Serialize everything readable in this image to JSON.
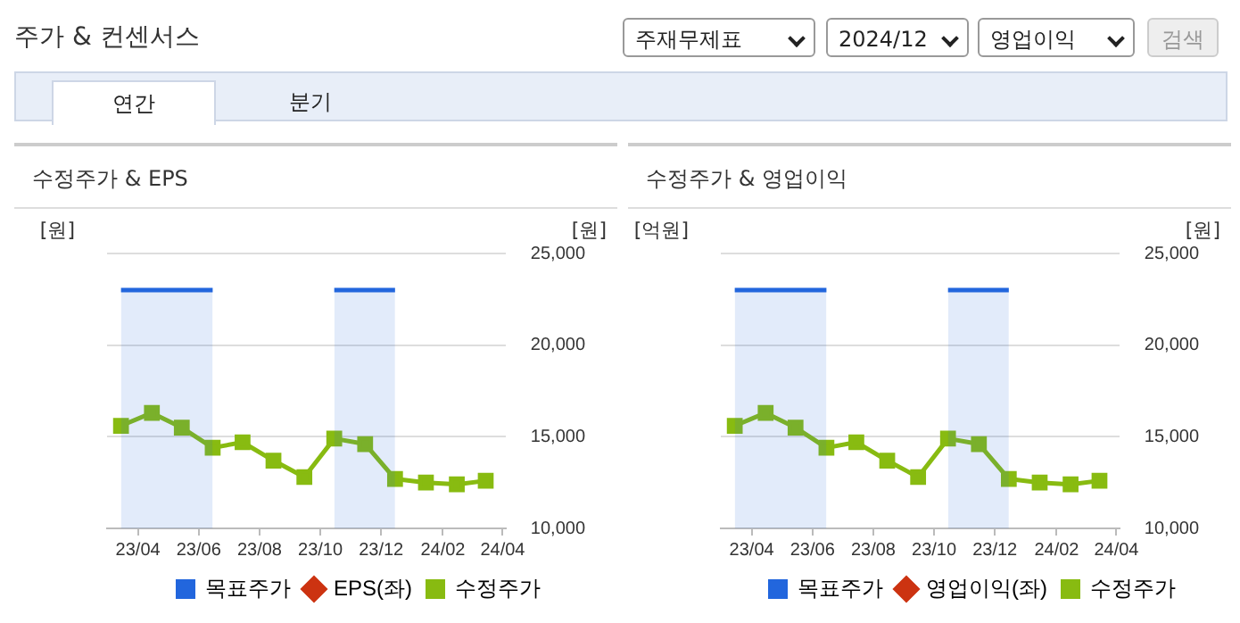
{
  "chart_data": [
    {
      "type": "other",
      "title": "주가 & 컨센서스",
      "annotations": [
        "주재무제표",
        "2024/12",
        "영업이익",
        "검색",
        "연간",
        "분기"
      ]
    },
    {
      "type": "line",
      "title": "수정주가 & EPS",
      "ylabel": "[원]",
      "y2label": "[원]",
      "xlim": [
        "2023-03-01",
        "2024-04-04"
      ],
      "xticks": [
        {
          "value": "2023-04",
          "label": "23/04"
        },
        {
          "value": "2023-06",
          "label": "23/06"
        },
        {
          "value": "2023-08",
          "label": "23/08"
        },
        {
          "value": "2023-10",
          "label": "23/10"
        },
        {
          "value": "2023-12",
          "label": "23/12"
        },
        {
          "value": "2024-02",
          "label": "24/02"
        },
        {
          "value": "2024-04",
          "label": "24/04"
        }
      ],
      "x": [
        "2023-03-15",
        "2023-04-15",
        "2023-05-15",
        "2023-06-15",
        "2023-07-15",
        "2023-08-15",
        "2023-09-15",
        "2023-10-15",
        "2023-11-15",
        "2023-12-15",
        "2024-01-15",
        "2024-02-15",
        "2024-03-15"
      ],
      "y2lim": [
        10000,
        25000
      ],
      "y2ticks": [
        {
          "value": 10000,
          "label": "10,000"
        },
        {
          "value": 15000,
          "label": "15,000"
        },
        {
          "value": 20000,
          "label": "20,000"
        },
        {
          "value": 25000,
          "label": "25,000"
        }
      ],
      "grid": "y",
      "legend": "bottom",
      "series": [
        {
          "name": "목표주가",
          "type": "area",
          "color": "#2266dd",
          "marker": "none",
          "axis": "y2",
          "values": [
            23000,
            23000,
            23000,
            23000,
            null,
            null,
            null,
            23000,
            23000,
            23000,
            null,
            null,
            null
          ]
        },
        {
          "name": "EPS(좌)",
          "color": "#cc3311",
          "marker": "diamond",
          "values": [
            null,
            null,
            null,
            null,
            null,
            null,
            null,
            null,
            null,
            null,
            null,
            null,
            null
          ]
        },
        {
          "name": "수정주가",
          "color": "#88bb11",
          "marker": "square",
          "axis": "y2",
          "values": [
            15600,
            16300,
            15500,
            14400,
            14700,
            13700,
            12800,
            14900,
            14600,
            12700,
            12500,
            12400,
            12600
          ]
        }
      ]
    },
    {
      "type": "line",
      "title": "수정주가 & 영업이익",
      "ylabel": "[억원]",
      "y2label": "[원]",
      "xlim": [
        "2023-03-01",
        "2024-04-04"
      ],
      "xticks": [
        {
          "value": "2023-04",
          "label": "23/04"
        },
        {
          "value": "2023-06",
          "label": "23/06"
        },
        {
          "value": "2023-08",
          "label": "23/08"
        },
        {
          "value": "2023-10",
          "label": "23/10"
        },
        {
          "value": "2023-12",
          "label": "23/12"
        },
        {
          "value": "2024-02",
          "label": "24/02"
        },
        {
          "value": "2024-04",
          "label": "24/04"
        }
      ],
      "x": [
        "2023-03-15",
        "2023-04-15",
        "2023-05-15",
        "2023-06-15",
        "2023-07-15",
        "2023-08-15",
        "2023-09-15",
        "2023-10-15",
        "2023-11-15",
        "2023-12-15",
        "2024-01-15",
        "2024-02-15",
        "2024-03-15"
      ],
      "y2lim": [
        10000,
        25000
      ],
      "y2ticks": [
        {
          "value": 10000,
          "label": "10,000"
        },
        {
          "value": 15000,
          "label": "15,000"
        },
        {
          "value": 20000,
          "label": "20,000"
        },
        {
          "value": 25000,
          "label": "25,000"
        }
      ],
      "grid": "y",
      "legend": "bottom",
      "series": [
        {
          "name": "목표주가",
          "type": "area",
          "color": "#2266dd",
          "marker": "none",
          "axis": "y2",
          "values": [
            23000,
            23000,
            23000,
            23000,
            null,
            null,
            null,
            23000,
            23000,
            23000,
            null,
            null,
            null
          ]
        },
        {
          "name": "영업이익(좌)",
          "color": "#cc3311",
          "marker": "diamond",
          "values": [
            null,
            null,
            null,
            null,
            null,
            null,
            null,
            null,
            null,
            null,
            null,
            null,
            null
          ]
        },
        {
          "name": "수정주가",
          "color": "#88bb11",
          "marker": "square",
          "axis": "y2",
          "values": [
            15600,
            16300,
            15500,
            14400,
            14700,
            13700,
            12800,
            14900,
            14600,
            12700,
            12500,
            12400,
            12600
          ]
        }
      ]
    }
  ]
}
